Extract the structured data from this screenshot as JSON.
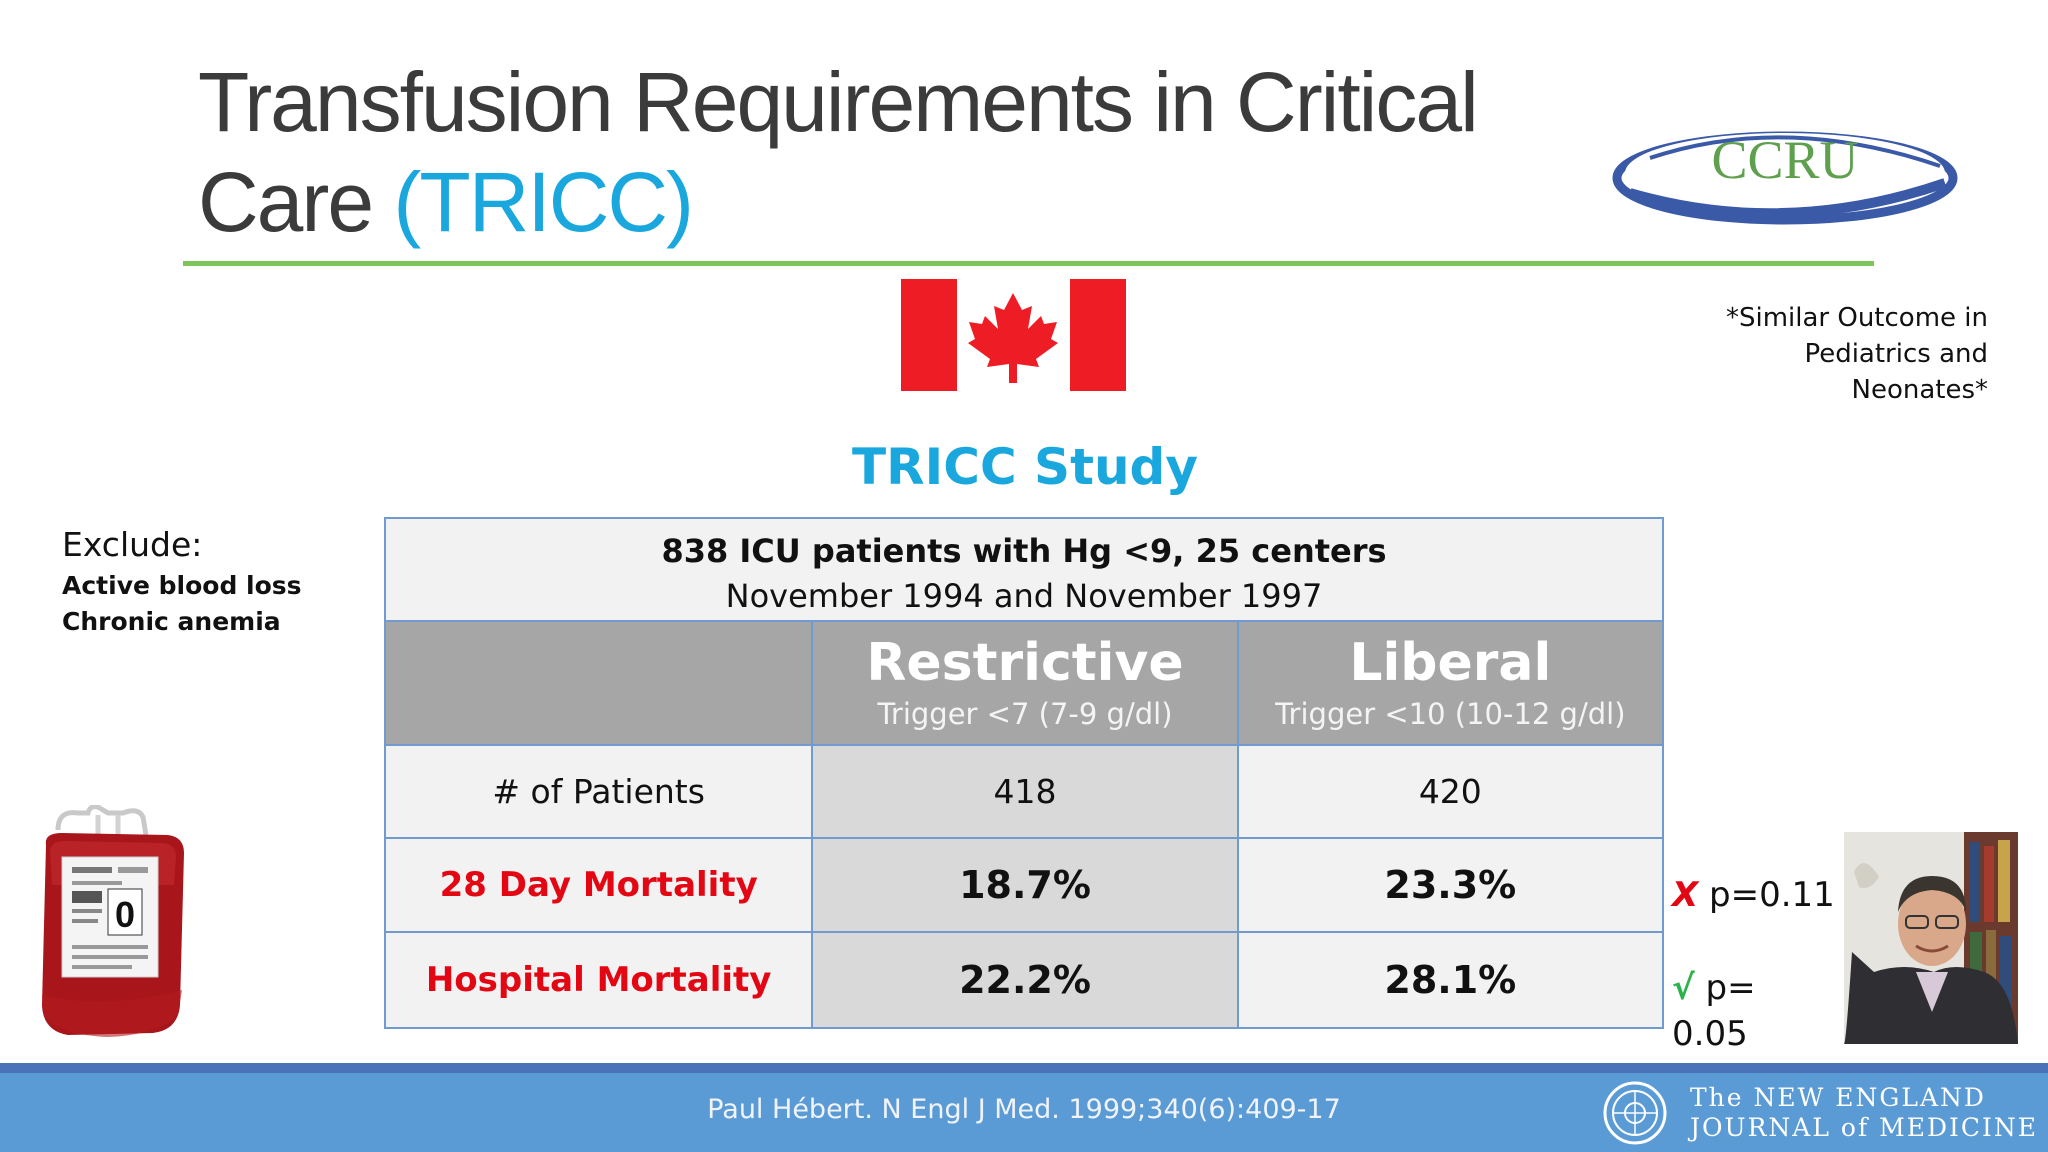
{
  "slide": {
    "title_line1": "Transfusion Requirements in Critical",
    "title_line2": "Care ",
    "title_accent": "(TRICC)",
    "logo_text": "CCRU",
    "note_line1": "*Similar Outcome in",
    "note_line2": "Pediatrics and",
    "note_line3": "Neonates*",
    "study_title": "TRICC Study",
    "colors": {
      "title": "#3b3b3b",
      "accent": "#1aa7de",
      "rule": "#7dc45b",
      "mortality": "#e30613",
      "footer": "#5b9bd5"
    }
  },
  "exclude": {
    "heading": "Exclude:",
    "items": [
      "Active blood loss",
      "Chronic anemia"
    ]
  },
  "table": {
    "header_line1": "838 ICU patients with Hg <9, 25 centers",
    "header_line2": "November 1994 and November 1997",
    "columns": [
      {
        "name": "Restrictive",
        "trigger": "Trigger <7 (7-9 g/dl)"
      },
      {
        "name": "Liberal",
        "trigger": "Trigger <10 (10-12 g/dl)"
      }
    ],
    "rows": [
      {
        "label": "# of Patients",
        "restrictive": "418",
        "liberal": "420"
      },
      {
        "label": "28 Day Mortality",
        "restrictive": "18.7%",
        "liberal": "23.3%"
      },
      {
        "label": "Hospital Mortality",
        "restrictive": "22.2%",
        "liberal": "28.1%"
      }
    ]
  },
  "pvalues": {
    "p1_mark": "X",
    "p1_text": " p=0.11",
    "p2_mark": "√",
    "p2_text": " p= 0.05"
  },
  "footer": {
    "citation": "Paul Hébert. N Engl J Med. 1999;340(6):409-17",
    "journal_line1": "The NEW ENGLAND",
    "journal_line2": "JOURNAL of MEDICINE"
  },
  "icons": {
    "flag": "canada-flag-icon",
    "bag": "blood-bag-image",
    "photo": "author-photo"
  }
}
